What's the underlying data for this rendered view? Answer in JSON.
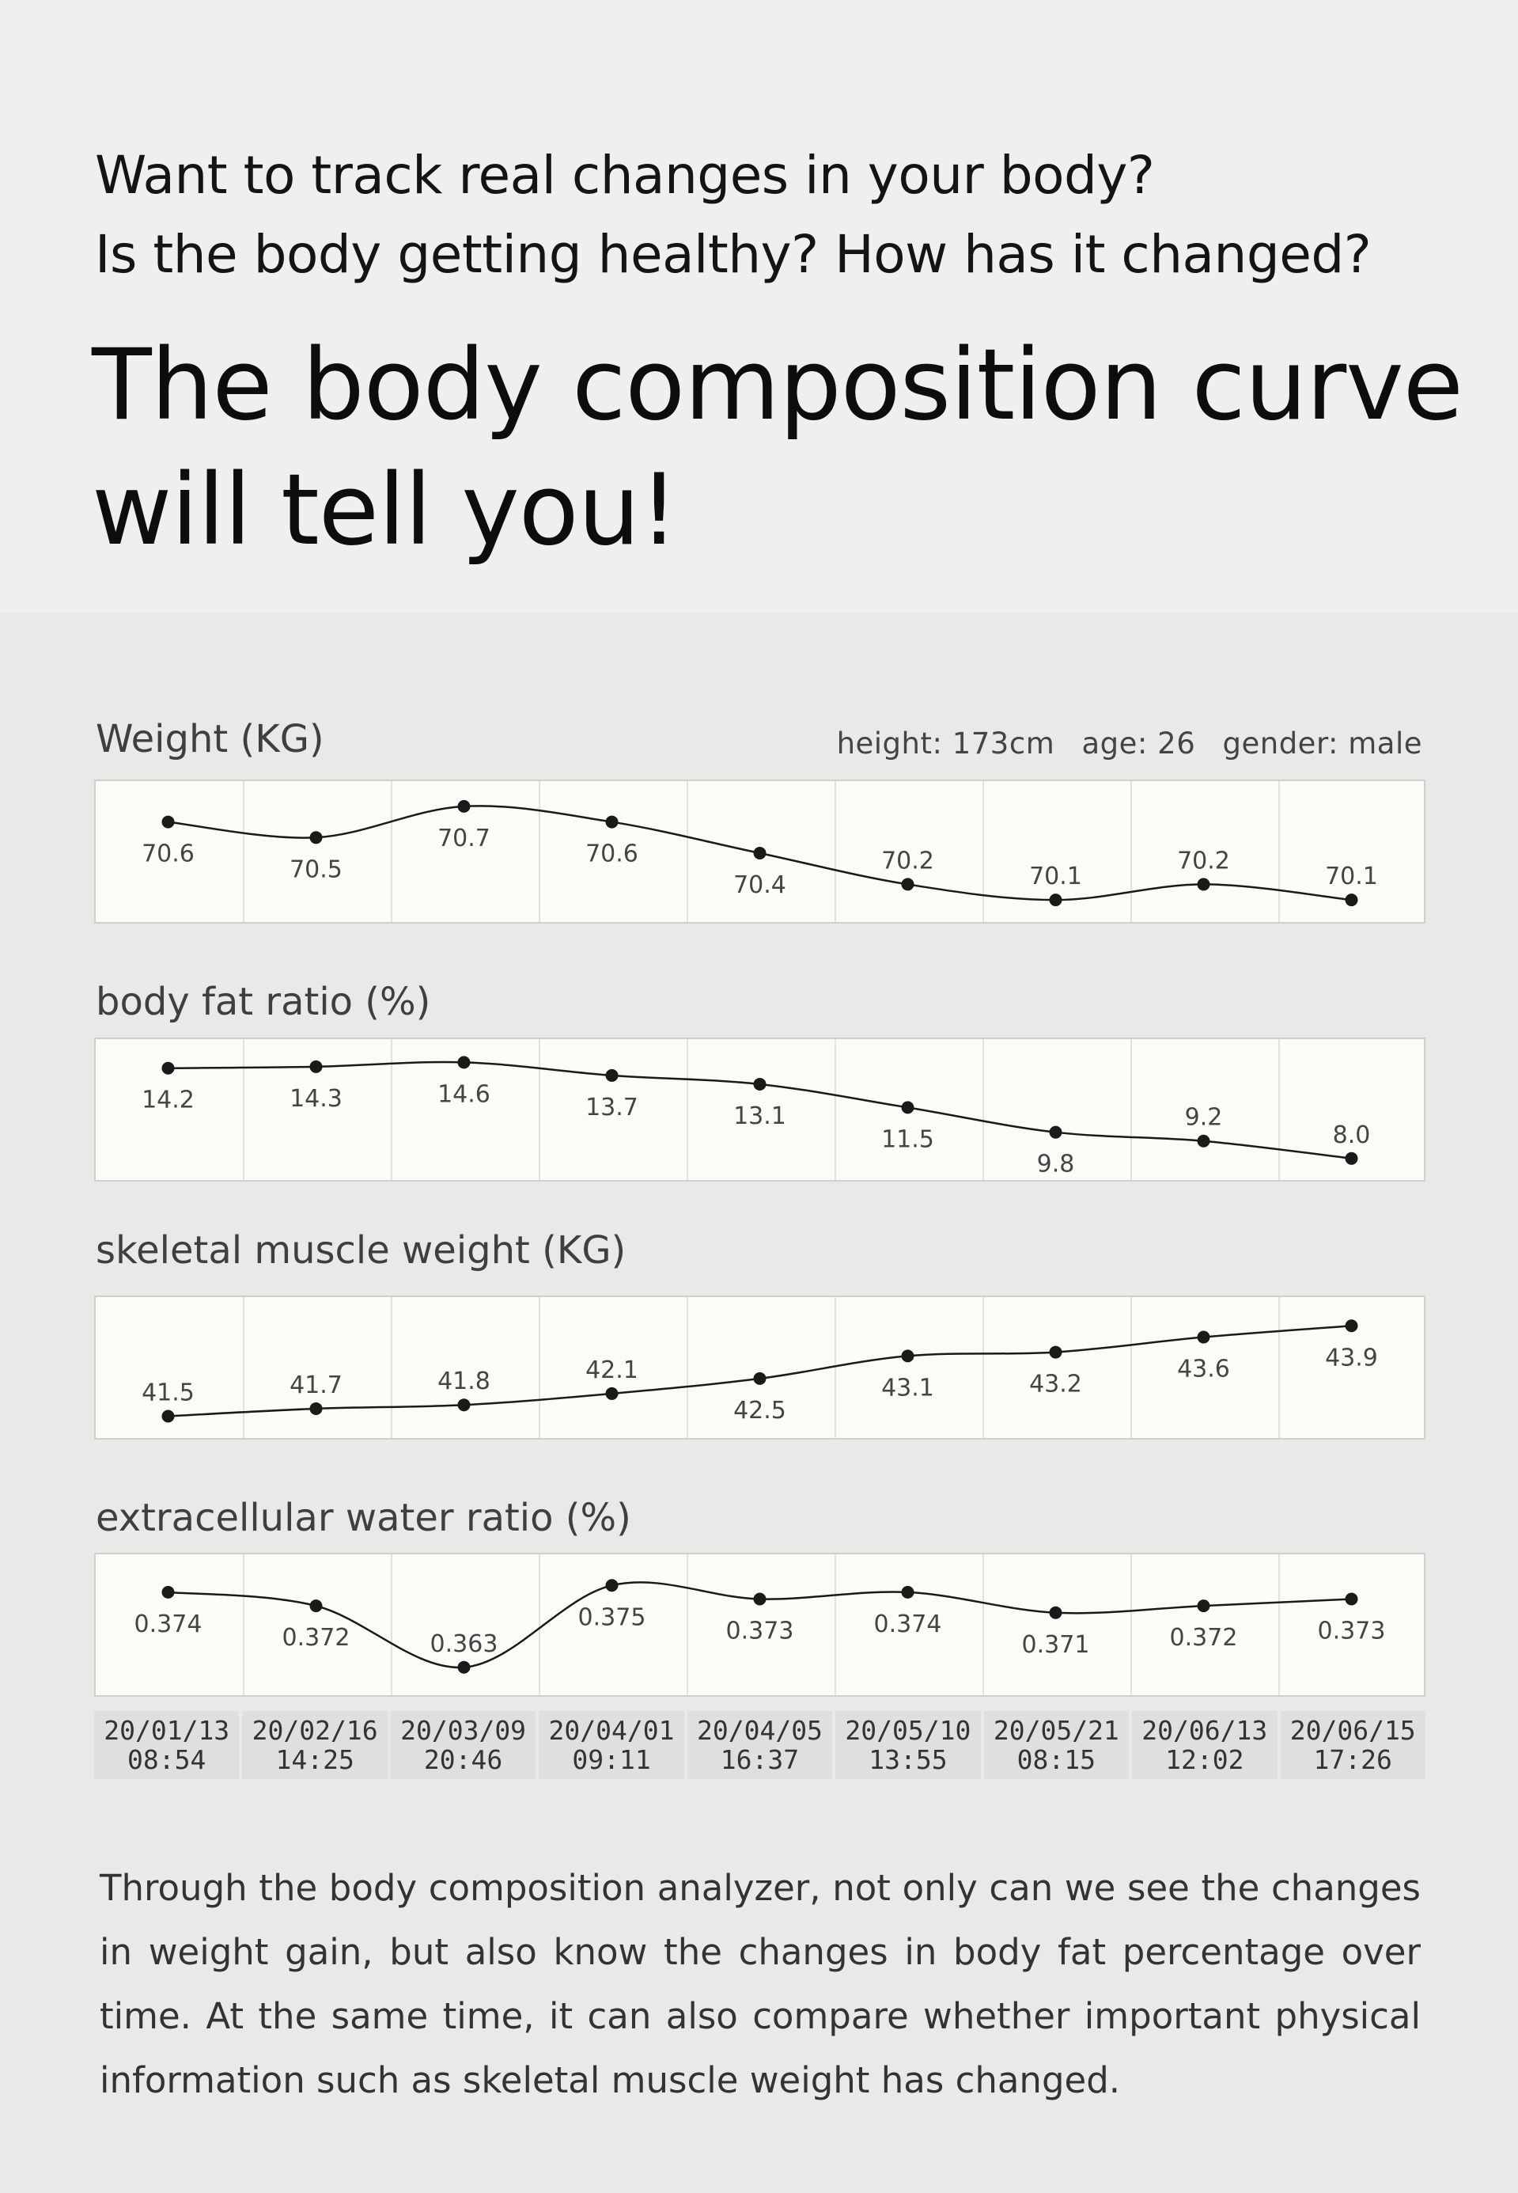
{
  "intro": {
    "line1": "Want to track real changes in your body?",
    "line2": "Is the body getting healthy? How has it changed?"
  },
  "headline": {
    "line1": "The body composition curve",
    "line2": "will tell you!"
  },
  "meta": {
    "height": "height: 173cm",
    "age": "age: 26",
    "gender": "gender: male"
  },
  "chart_data": [
    {
      "type": "line",
      "title": "Weight (KG)",
      "categories": [
        "20/01/13\n08:54",
        "20/02/16\n14:25",
        "20/03/09\n20:46",
        "20/04/01\n09:11",
        "20/04/05\n16:37",
        "20/05/10\n13:55",
        "20/05/21\n08:15",
        "20/06/13\n12:02",
        "20/06/15\n17:26"
      ],
      "values": [
        70.6,
        70.5,
        70.7,
        70.6,
        70.4,
        70.2,
        70.1,
        70.2,
        70.1
      ],
      "labels": [
        "70.6",
        "70.5",
        "70.7",
        "70.6",
        "70.4",
        "70.2",
        "70.1",
        "70.2",
        "70.1"
      ],
      "ylim": [
        70.05,
        70.75
      ],
      "grid": true
    },
    {
      "type": "line",
      "title": "body fat ratio (%)",
      "categories": [
        "20/01/13\n08:54",
        "20/02/16\n14:25",
        "20/03/09\n20:46",
        "20/04/01\n09:11",
        "20/04/05\n16:37",
        "20/05/10\n13:55",
        "20/05/21\n08:15",
        "20/06/13\n12:02",
        "20/06/15\n17:26"
      ],
      "values": [
        14.2,
        14.3,
        14.6,
        13.7,
        13.1,
        11.5,
        9.8,
        9.2,
        8.0
      ],
      "labels": [
        "14.2",
        "14.3",
        "14.6",
        "13.7",
        "13.1",
        "11.5",
        "9.8",
        "9.2",
        "8.0"
      ],
      "ylim": [
        7.5,
        15.0
      ],
      "grid": true
    },
    {
      "type": "line",
      "title": "skeletal muscle weight (KG)",
      "categories": [
        "20/01/13\n08:54",
        "20/02/16\n14:25",
        "20/03/09\n20:46",
        "20/04/01\n09:11",
        "20/04/05\n16:37",
        "20/05/10\n13:55",
        "20/05/21\n08:15",
        "20/06/13\n12:02",
        "20/06/15\n17:26"
      ],
      "values": [
        41.5,
        41.7,
        41.8,
        42.1,
        42.5,
        43.1,
        43.2,
        43.6,
        43.9
      ],
      "labels": [
        "41.5",
        "41.7",
        "41.8",
        "42.1",
        "42.5",
        "43.1",
        "43.2",
        "43.6",
        "43.9"
      ],
      "ylim": [
        41.3,
        44.2
      ],
      "grid": true
    },
    {
      "type": "line",
      "title": "extracellular water ratio (%)",
      "categories": [
        "20/01/13\n08:54",
        "20/02/16\n14:25",
        "20/03/09\n20:46",
        "20/04/01\n09:11",
        "20/04/05\n16:37",
        "20/05/10\n13:55",
        "20/05/21\n08:15",
        "20/06/13\n12:02",
        "20/06/15\n17:26"
      ],
      "values": [
        0.374,
        0.372,
        0.363,
        0.375,
        0.373,
        0.374,
        0.371,
        0.372,
        0.373
      ],
      "labels": [
        "0.374",
        "0.372",
        "0.363",
        "0.375",
        "0.373",
        "0.374",
        "0.371",
        "0.372",
        "0.373"
      ],
      "ylim": [
        0.361,
        0.377
      ],
      "grid": true
    }
  ],
  "xaxis": {
    "ticks": [
      "20/01/13\n08:54",
      "20/02/16\n14:25",
      "20/03/09\n20:46",
      "20/04/01\n09:11",
      "20/04/05\n16:37",
      "20/05/10\n13:55",
      "20/05/21\n08:15",
      "20/06/13\n12:02",
      "20/06/15\n17:26"
    ]
  },
  "footer": {
    "text": "Through the body composition analyzer, not only can we see the changes in weight gain, but also know the changes in body fat percentage over time. At the same time, it can also compare whether important physical information such as skeletal muscle weight has changed."
  },
  "colors": {
    "line": "#1a1a1a",
    "panel_bg": "#fcfbf5",
    "grid": "#e2e2dc"
  }
}
